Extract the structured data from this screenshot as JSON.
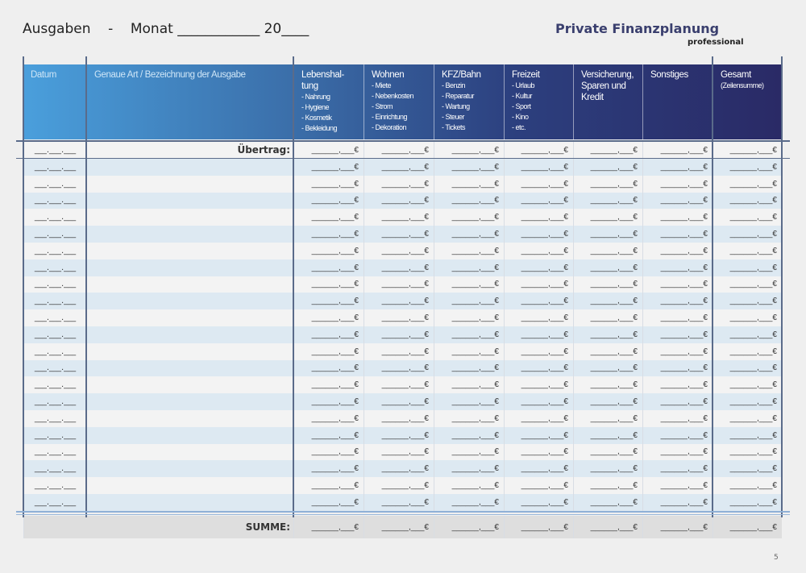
{
  "header": {
    "left": "Ausgaben    -    Monat ____________ 20____",
    "brand": "Private Finanzplanung",
    "brand_sub": "professional"
  },
  "columns": [
    {
      "title": "Datum",
      "sub": ""
    },
    {
      "title": "Genaue Art / Bezeichnung  der Ausgabe",
      "sub": ""
    },
    {
      "title": "Lebenshal-\ntung",
      "sub": "- Nahrung\n- Hygiene\n- Kosmetik\n- Bekleidung"
    },
    {
      "title": "Wohnen",
      "sub": "- Miete\n- Nebenkosten\n- Strom\n- Einrichtung\n- Dekoration"
    },
    {
      "title": "KFZ/Bahn",
      "sub": "- Benzin\n- Reparatur\n- Wartung\n- Steuer\n- Tickets"
    },
    {
      "title": "Freizeit",
      "sub": "- Urlaub\n- Kultur\n- Sport\n- Kino\n- etc."
    },
    {
      "title": "Versicherung,\nSparen und\nKredit",
      "sub": ""
    },
    {
      "title": "Sonstiges",
      "sub": ""
    },
    {
      "title": "Gesamt",
      "sub": "(Zeilensumme)"
    }
  ],
  "carry_label": "Übertrag:",
  "sum_label": "SUMME:",
  "date_blank": "___.___.___",
  "amount_blank": "______,___€",
  "colors": {
    "header_start": "#4a9fdc",
    "header_end": "#2a2a66",
    "row_alt": "#dde9f2",
    "row": "#f3f3f3",
    "sum_row": "#dedede"
  },
  "page_number": "5"
}
